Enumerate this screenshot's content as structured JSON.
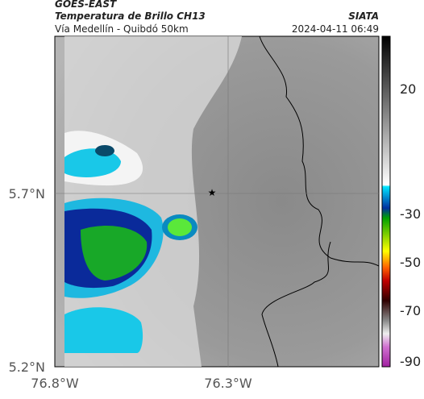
{
  "header": {
    "title": "GOES-EAST",
    "subtitle": "Temperatura de Brillo CH13",
    "source": "SIATA",
    "region": "Vía Medellín - Quibdó 50km",
    "timestamp": "2024-04-11 06:49"
  },
  "map": {
    "lat_labels": [
      "5.7°N",
      "5.2°N"
    ],
    "lon_labels": [
      "76.8°W",
      "76.3°W"
    ]
  },
  "colorbar": {
    "ticks": [
      20,
      -30,
      -50,
      -70,
      -90
    ]
  }
}
